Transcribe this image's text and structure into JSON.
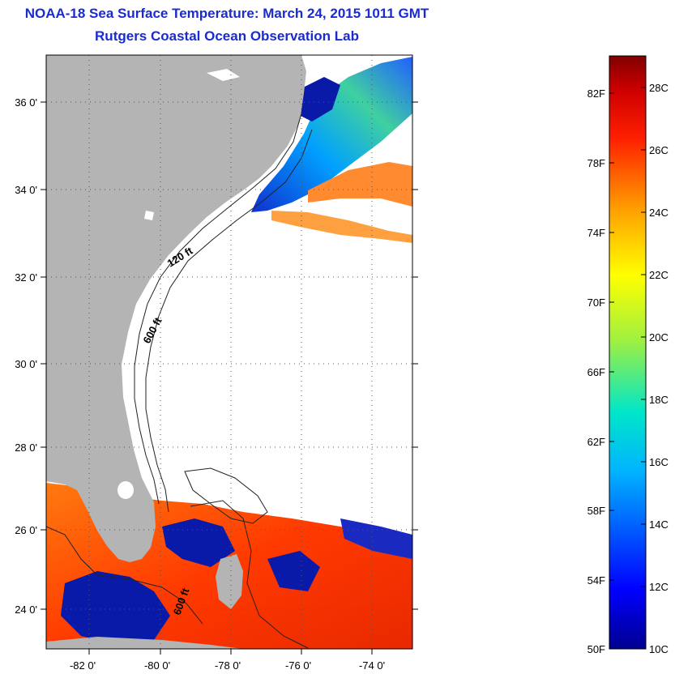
{
  "title": "NOAA-18 Sea Surface Temperature:  March 24, 2015 1011 GMT",
  "subtitle": "Rutgers Coastal Ocean Observation Lab",
  "map": {
    "lat_ticks": [
      "36 0'",
      "34 0'",
      "32 0'",
      "30 0'",
      "28 0'",
      "26 0'",
      "24 0'"
    ],
    "lon_ticks": [
      "-82 0'",
      "-80 0'",
      "-78 0'",
      "-76 0'",
      "-74 0'"
    ],
    "contour_labels": [
      "120 ft",
      "600 ft",
      "600 ft"
    ],
    "colors": {
      "land": "#b4b4b4",
      "grid": "#444444"
    }
  },
  "colorbar": {
    "fahrenheit": [
      "82F",
      "78F",
      "74F",
      "70F",
      "66F",
      "62F",
      "58F",
      "54F",
      "50F"
    ],
    "celsius": [
      "28C",
      "26C",
      "24C",
      "22C",
      "20C",
      "18C",
      "16C",
      "14C",
      "12C",
      "10C"
    ]
  }
}
